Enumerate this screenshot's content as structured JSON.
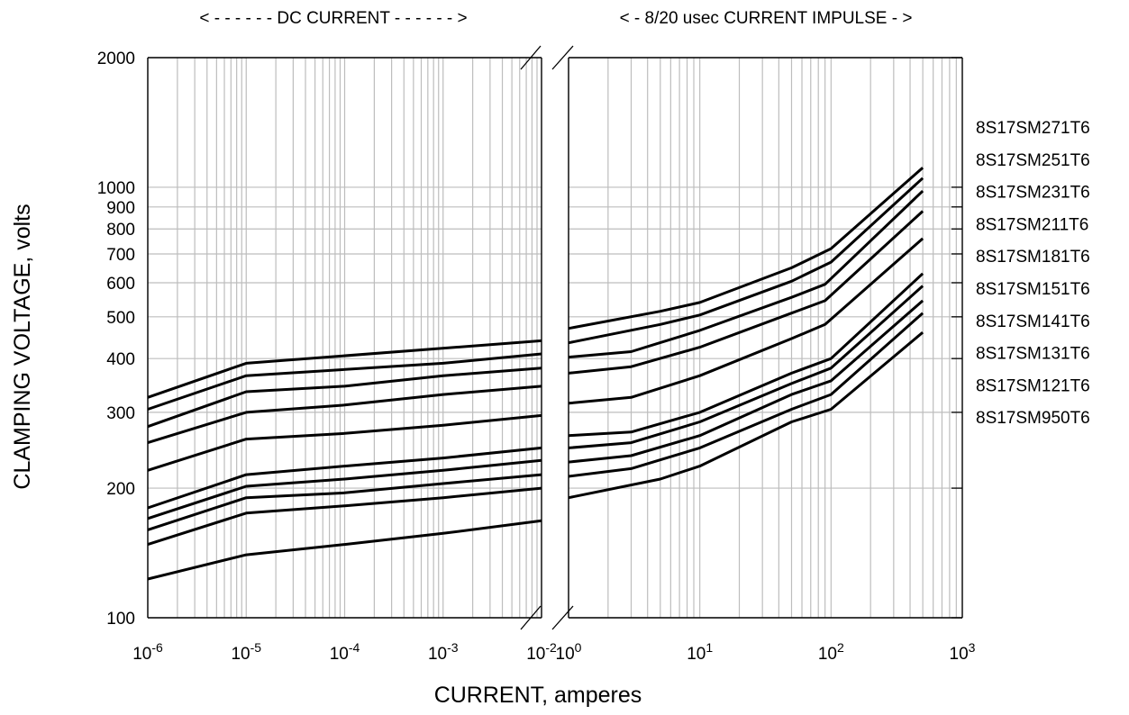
{
  "chart_data": {
    "type": "line",
    "title": "",
    "ylabel": "CLAMPING VOLTAGE, volts",
    "xlabel": "CURRENT, amperes",
    "y_scale": "log",
    "ylim": [
      100,
      2000
    ],
    "y_tick_labels": [
      {
        "value": 100,
        "label": "100"
      },
      {
        "value": 200,
        "label": "200"
      },
      {
        "value": 300,
        "label": "300"
      },
      {
        "value": 400,
        "label": "400"
      },
      {
        "value": 500,
        "label": "500"
      },
      {
        "value": 600,
        "label": "600"
      },
      {
        "value": 700,
        "label": "700"
      },
      {
        "value": 800,
        "label": "800"
      },
      {
        "value": 900,
        "label": "900"
      },
      {
        "value": 1000,
        "label": "1000"
      },
      {
        "value": 2000,
        "label": "2000"
      }
    ],
    "grid": true,
    "legend": "right",
    "panels": [
      {
        "name": "dc",
        "header": "< - - - - - - DC CURRENT - - - - - - >",
        "x_scale": "log",
        "xlim": [
          1e-06,
          0.01
        ],
        "x_tick_labels": [
          {
            "value": 1e-06,
            "base": "10",
            "exp": "-6"
          },
          {
            "value": 1e-05,
            "base": "10",
            "exp": "-5"
          },
          {
            "value": 0.0001,
            "base": "10",
            "exp": "-4"
          },
          {
            "value": 0.001,
            "base": "10",
            "exp": "-3"
          },
          {
            "value": 0.01,
            "base": "10",
            "exp": "-2"
          }
        ]
      },
      {
        "name": "impulse",
        "header": "< - 8/20 usec CURRENT IMPULSE - >",
        "x_scale": "log",
        "xlim": [
          1,
          1000
        ],
        "x_tick_labels": [
          {
            "value": 1,
            "base": "10",
            "exp": "0"
          },
          {
            "value": 10,
            "base": "10",
            "exp": "1"
          },
          {
            "value": 100,
            "base": "10",
            "exp": "2"
          },
          {
            "value": 1000,
            "base": "10",
            "exp": "3"
          }
        ]
      }
    ],
    "series": [
      {
        "name": "8S17SM271T6",
        "dc": [
          [
            1e-06,
            325
          ],
          [
            1e-05,
            390
          ],
          [
            0.01,
            440
          ]
        ],
        "impulse": [
          [
            1,
            470
          ],
          [
            5,
            515
          ],
          [
            10,
            540
          ],
          [
            50,
            650
          ],
          [
            100,
            720
          ],
          [
            500,
            1110
          ]
        ]
      },
      {
        "name": "8S17SM251T6",
        "dc": [
          [
            1e-06,
            305
          ],
          [
            1e-05,
            365
          ],
          [
            0.001,
            390
          ],
          [
            0.01,
            410
          ]
        ],
        "impulse": [
          [
            1,
            435
          ],
          [
            5,
            480
          ],
          [
            10,
            505
          ],
          [
            50,
            605
          ],
          [
            100,
            670
          ],
          [
            500,
            1050
          ]
        ]
      },
      {
        "name": "8S17SM231T6",
        "dc": [
          [
            1e-06,
            278
          ],
          [
            1e-05,
            335
          ],
          [
            0.0001,
            345
          ],
          [
            0.001,
            365
          ],
          [
            0.01,
            380
          ]
        ],
        "impulse": [
          [
            1,
            403
          ],
          [
            3,
            415
          ],
          [
            10,
            465
          ],
          [
            50,
            555
          ],
          [
            90,
            595
          ],
          [
            500,
            980
          ]
        ]
      },
      {
        "name": "8S17SM211T6",
        "dc": [
          [
            1e-06,
            255
          ],
          [
            1e-05,
            300
          ],
          [
            0.0001,
            312
          ],
          [
            0.001,
            330
          ],
          [
            0.01,
            345
          ]
        ],
        "impulse": [
          [
            1,
            370
          ],
          [
            3,
            383
          ],
          [
            10,
            425
          ],
          [
            50,
            510
          ],
          [
            90,
            545
          ],
          [
            500,
            880
          ]
        ]
      },
      {
        "name": "8S17SM181T6",
        "dc": [
          [
            1e-06,
            220
          ],
          [
            1e-05,
            260
          ],
          [
            0.0001,
            268
          ],
          [
            0.001,
            280
          ],
          [
            0.01,
            295
          ]
        ],
        "impulse": [
          [
            1,
            315
          ],
          [
            3,
            325
          ],
          [
            10,
            365
          ],
          [
            50,
            445
          ],
          [
            90,
            480
          ],
          [
            500,
            760
          ]
        ]
      },
      {
        "name": "8S17SM151T6",
        "dc": [
          [
            1e-06,
            180
          ],
          [
            1e-05,
            215
          ],
          [
            0.0001,
            225
          ],
          [
            0.001,
            235
          ],
          [
            0.01,
            248
          ]
        ],
        "impulse": [
          [
            1,
            265
          ],
          [
            3,
            270
          ],
          [
            10,
            300
          ],
          [
            50,
            370
          ],
          [
            100,
            400
          ],
          [
            500,
            630
          ]
        ]
      },
      {
        "name": "8S17SM141T6",
        "dc": [
          [
            1e-06,
            170
          ],
          [
            1e-05,
            202
          ],
          [
            0.0001,
            210
          ],
          [
            0.001,
            220
          ],
          [
            0.01,
            232
          ]
        ],
        "impulse": [
          [
            1,
            248
          ],
          [
            3,
            255
          ],
          [
            10,
            285
          ],
          [
            50,
            350
          ],
          [
            100,
            380
          ],
          [
            500,
            590
          ]
        ]
      },
      {
        "name": "8S17SM131T6",
        "dc": [
          [
            1e-06,
            160
          ],
          [
            1e-05,
            190
          ],
          [
            0.0001,
            195
          ],
          [
            0.001,
            205
          ],
          [
            0.01,
            215
          ]
        ],
        "impulse": [
          [
            1,
            230
          ],
          [
            3,
            238
          ],
          [
            10,
            265
          ],
          [
            50,
            330
          ],
          [
            100,
            355
          ],
          [
            500,
            545
          ]
        ]
      },
      {
        "name": "8S17SM121T6",
        "dc": [
          [
            1e-06,
            148
          ],
          [
            1e-05,
            175
          ],
          [
            0.0001,
            182
          ],
          [
            0.001,
            190
          ],
          [
            0.01,
            200
          ]
        ],
        "impulse": [
          [
            1,
            213
          ],
          [
            3,
            222
          ],
          [
            10,
            248
          ],
          [
            50,
            305
          ],
          [
            100,
            330
          ],
          [
            500,
            510
          ]
        ]
      },
      {
        "name": "8S17SM950T6",
        "dc": [
          [
            1e-06,
            123
          ],
          [
            1e-05,
            140
          ],
          [
            0.0001,
            148
          ],
          [
            0.001,
            157
          ],
          [
            0.01,
            168
          ]
        ],
        "impulse": [
          [
            1,
            190
          ],
          [
            5,
            210
          ],
          [
            10,
            225
          ],
          [
            50,
            285
          ],
          [
            100,
            305
          ],
          [
            500,
            460
          ]
        ]
      }
    ]
  }
}
